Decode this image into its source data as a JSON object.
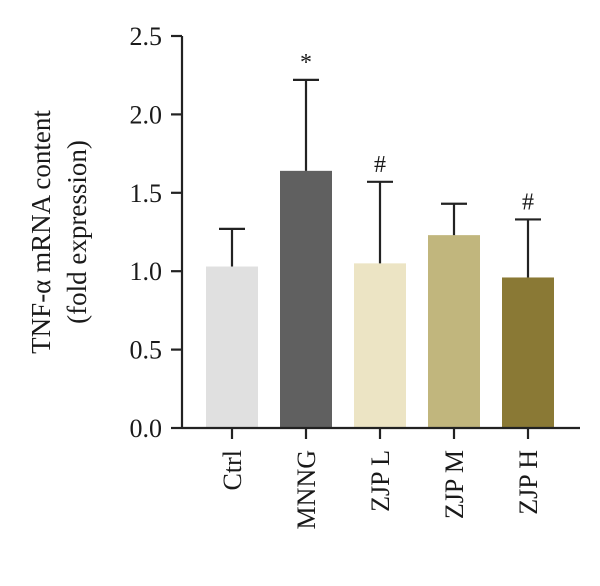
{
  "chart_data": {
    "type": "bar",
    "categories": [
      "Ctrl",
      "MNNG",
      "ZJP L",
      "ZJP M",
      "ZJP H"
    ],
    "values": [
      1.03,
      1.64,
      1.05,
      1.23,
      0.96
    ],
    "errors": [
      0.24,
      0.58,
      0.52,
      0.2,
      0.37
    ],
    "markers": [
      "",
      "*",
      "#",
      "",
      "#"
    ],
    "colors": [
      "#e0e0e0",
      "#606060",
      "#ece4c4",
      "#c1b67d",
      "#8a7935"
    ],
    "ylabel_line1": "TNF-α mRNA content",
    "ylabel_line2": "(fold expression)",
    "ylim": [
      0,
      2.5
    ],
    "yticks": [
      0.0,
      0.5,
      1.0,
      1.5,
      2.0,
      2.5
    ],
    "ytick_labels": [
      "0.0",
      "0.5",
      "1.0",
      "1.5",
      "2.0",
      "2.5"
    ],
    "grid": false,
    "legend": "none"
  }
}
